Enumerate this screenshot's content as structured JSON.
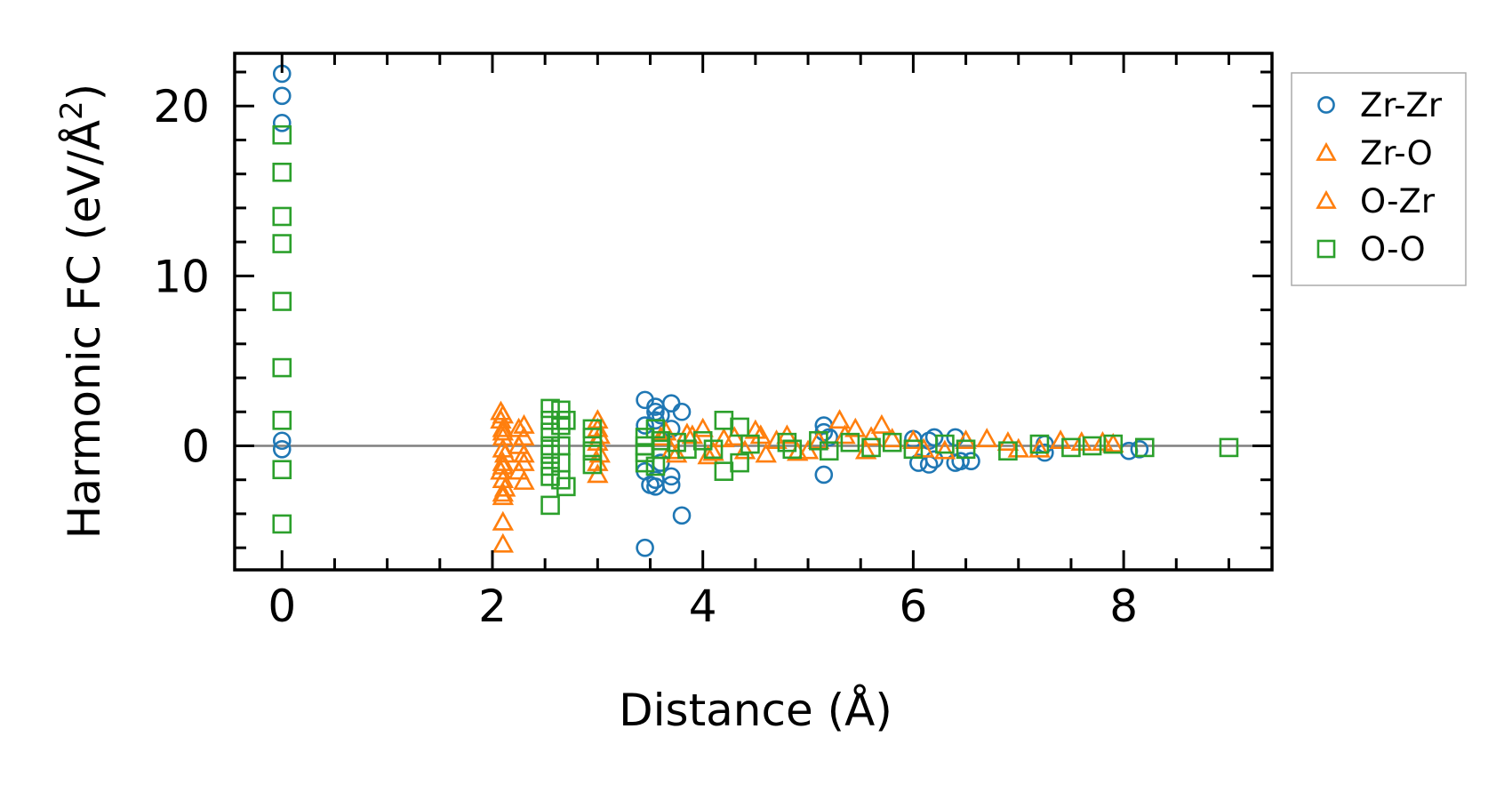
{
  "chart_data": {
    "type": "scatter",
    "title": "",
    "xlabel": "Distance (Å)",
    "ylabel_main": "Harmonic FC (eV/Å",
    "ylabel_sup": "2",
    "ylabel_end": ")",
    "xlim": [
      -0.45,
      9.41
    ],
    "ylim": [
      -7.3,
      23.1
    ],
    "xticks": [
      0,
      2,
      4,
      6,
      8
    ],
    "xtick_labels": [
      "0",
      "2",
      "4",
      "6",
      "8"
    ],
    "yticks": [
      0,
      10,
      20
    ],
    "ytick_labels": [
      "0",
      "10",
      "20"
    ],
    "x_minor_step": 0.5,
    "y_minor_step": 2,
    "zero_line": 0,
    "grid": false,
    "legend_position": "outside-right-top",
    "series": [
      {
        "name": "Zr-Zr",
        "marker": "circle",
        "color": "#1f77b4",
        "points": [
          [
            0,
            21.9
          ],
          [
            0,
            20.6
          ],
          [
            0,
            19.0
          ],
          [
            0,
            0.3
          ],
          [
            0,
            -0.2
          ],
          [
            3.45,
            2.7
          ],
          [
            3.45,
            1.2
          ],
          [
            3.45,
            -1.5
          ],
          [
            3.45,
            -6.0
          ],
          [
            3.5,
            -2.3
          ],
          [
            3.55,
            2.3
          ],
          [
            3.55,
            2.0
          ],
          [
            3.55,
            1.5
          ],
          [
            3.55,
            -2.4
          ],
          [
            3.55,
            -2.0
          ],
          [
            3.6,
            1.8
          ],
          [
            3.6,
            -1.0
          ],
          [
            3.7,
            2.5
          ],
          [
            3.7,
            1.0
          ],
          [
            3.7,
            -2.3
          ],
          [
            3.7,
            -1.8
          ],
          [
            3.8,
            2.0
          ],
          [
            3.8,
            -4.1
          ],
          [
            5.15,
            1.2
          ],
          [
            5.15,
            0.8
          ],
          [
            5.15,
            -1.7
          ],
          [
            5.2,
            0.5
          ],
          [
            6.0,
            0.4
          ],
          [
            6.05,
            -1.0
          ],
          [
            6.15,
            -1.1
          ],
          [
            6.15,
            0.3
          ],
          [
            6.2,
            0.5
          ],
          [
            6.2,
            -0.8
          ],
          [
            6.4,
            0.5
          ],
          [
            6.4,
            -1.0
          ],
          [
            6.45,
            -0.9
          ],
          [
            6.55,
            -0.9
          ],
          [
            7.25,
            -0.4
          ],
          [
            7.25,
            0.1
          ],
          [
            8.05,
            -0.3
          ],
          [
            8.15,
            -0.2
          ]
        ]
      },
      {
        "name": "Zr-O",
        "marker": "triangle",
        "color": "#ff7f0e",
        "points": [
          [
            2.08,
            2.0
          ],
          [
            2.08,
            1.5
          ],
          [
            2.1,
            1.0
          ],
          [
            2.1,
            0.5
          ],
          [
            2.12,
            -0.5
          ],
          [
            2.1,
            -1.0
          ],
          [
            2.08,
            -1.5
          ],
          [
            2.1,
            -2.0
          ],
          [
            2.12,
            -2.5
          ],
          [
            2.1,
            -3.0
          ],
          [
            2.1,
            -4.5
          ],
          [
            2.1,
            -5.8
          ],
          [
            2.3,
            1.2
          ],
          [
            2.3,
            0.5
          ],
          [
            2.3,
            -0.5
          ],
          [
            2.3,
            -1.0
          ],
          [
            2.3,
            -2.1
          ],
          [
            3.0,
            1.5
          ],
          [
            3.0,
            1.0
          ],
          [
            3.0,
            0.2
          ],
          [
            3.0,
            -1.0
          ],
          [
            3.0,
            -1.7
          ],
          [
            3.65,
            0.8
          ],
          [
            3.75,
            -0.5
          ],
          [
            3.9,
            0.6
          ],
          [
            4.0,
            1.0
          ],
          [
            4.1,
            -0.4
          ],
          [
            4.3,
            0.5
          ],
          [
            4.5,
            0.9
          ],
          [
            4.6,
            -0.5
          ],
          [
            4.8,
            0.6
          ],
          [
            5.0,
            -0.3
          ],
          [
            5.3,
            1.5
          ],
          [
            5.45,
            1.0
          ],
          [
            5.6,
            0.5
          ],
          [
            5.7,
            1.2
          ],
          [
            6.0,
            0.3
          ],
          [
            6.3,
            -0.3
          ],
          [
            6.7,
            0.4
          ],
          [
            7.0,
            -0.2
          ],
          [
            7.4,
            0.3
          ],
          [
            7.8,
            0.2
          ]
        ]
      },
      {
        "name": "O-Zr",
        "marker": "triangle",
        "color": "#ff7f0e",
        "points": [
          [
            2.1,
            1.8
          ],
          [
            2.1,
            0.8
          ],
          [
            2.1,
            -0.2
          ],
          [
            2.1,
            -1.2
          ],
          [
            2.1,
            -2.8
          ],
          [
            2.25,
            1.0
          ],
          [
            2.25,
            -1.5
          ],
          [
            2.25,
            0.0
          ],
          [
            3.02,
            0.6
          ],
          [
            3.02,
            -0.5
          ],
          [
            3.6,
            0.5
          ],
          [
            3.7,
            -0.3
          ],
          [
            3.85,
            0.7
          ],
          [
            4.05,
            -0.6
          ],
          [
            4.2,
            0.4
          ],
          [
            4.4,
            -0.3
          ],
          [
            4.55,
            0.6
          ],
          [
            4.7,
            0.3
          ],
          [
            4.9,
            -0.4
          ],
          [
            5.1,
            0.3
          ],
          [
            5.35,
            0.6
          ],
          [
            5.55,
            -0.3
          ],
          [
            5.8,
            0.4
          ],
          [
            6.1,
            -0.2
          ],
          [
            6.5,
            0.3
          ],
          [
            6.9,
            0.2
          ],
          [
            7.2,
            -0.2
          ],
          [
            7.6,
            0.2
          ],
          [
            7.9,
            0.1
          ]
        ]
      },
      {
        "name": "O-O",
        "marker": "square",
        "color": "#2ca02c",
        "points": [
          [
            0,
            18.3
          ],
          [
            0,
            16.1
          ],
          [
            0,
            13.5
          ],
          [
            0,
            11.9
          ],
          [
            0,
            8.5
          ],
          [
            0,
            4.6
          ],
          [
            0,
            1.5
          ],
          [
            0,
            -1.4
          ],
          [
            0,
            -4.6
          ],
          [
            2.55,
            2.2
          ],
          [
            2.55,
            1.5
          ],
          [
            2.55,
            0.8
          ],
          [
            2.55,
            0.0
          ],
          [
            2.55,
            -0.5
          ],
          [
            2.55,
            -1.2
          ],
          [
            2.55,
            -1.8
          ],
          [
            2.55,
            -3.5
          ],
          [
            2.65,
            2.1
          ],
          [
            2.65,
            1.2
          ],
          [
            2.65,
            0.0
          ],
          [
            2.65,
            -1.0
          ],
          [
            2.65,
            -2.0
          ],
          [
            2.7,
            -2.4
          ],
          [
            2.7,
            1.5
          ],
          [
            2.95,
            1.0
          ],
          [
            2.95,
            0.5
          ],
          [
            2.95,
            -0.3
          ],
          [
            2.95,
            -1.1
          ],
          [
            3.45,
            0.5
          ],
          [
            3.45,
            0.0
          ],
          [
            3.45,
            -0.4
          ],
          [
            3.45,
            -1.0
          ],
          [
            3.55,
            1.0
          ],
          [
            3.55,
            -1.2
          ],
          [
            3.6,
            0.3
          ],
          [
            3.6,
            -0.2
          ],
          [
            3.75,
            0.2
          ],
          [
            3.85,
            -0.2
          ],
          [
            4.0,
            0.3
          ],
          [
            4.1,
            -0.2
          ],
          [
            4.2,
            1.5
          ],
          [
            4.2,
            -1.5
          ],
          [
            4.35,
            1.1
          ],
          [
            4.35,
            -1.0
          ],
          [
            4.45,
            0.1
          ],
          [
            4.8,
            0.2
          ],
          [
            4.85,
            -0.2
          ],
          [
            5.1,
            0.3
          ],
          [
            5.2,
            -0.3
          ],
          [
            5.4,
            0.2
          ],
          [
            5.6,
            -0.1
          ],
          [
            5.8,
            0.2
          ],
          [
            6.0,
            -0.2
          ],
          [
            6.3,
            0.1
          ],
          [
            6.5,
            -0.2
          ],
          [
            6.9,
            -0.3
          ],
          [
            7.2,
            0.1
          ],
          [
            7.5,
            -0.1
          ],
          [
            7.7,
            0.0
          ],
          [
            7.9,
            0.1
          ],
          [
            8.2,
            -0.1
          ],
          [
            9.0,
            -0.1
          ]
        ]
      }
    ]
  }
}
